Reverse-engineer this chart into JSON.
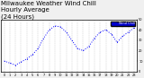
{
  "title": "Milwaukee Weather Wind Chill\nHourly Average\n(24 Hours)",
  "hours": [
    0,
    1,
    2,
    3,
    4,
    5,
    6,
    7,
    8,
    9,
    10,
    11,
    12,
    13,
    14,
    15,
    16,
    17,
    18,
    19,
    20,
    21,
    22,
    23
  ],
  "wind_chill": [
    10,
    8,
    6,
    9,
    12,
    16,
    22,
    32,
    40,
    44,
    43,
    38,
    30,
    22,
    20,
    24,
    32,
    38,
    40,
    36,
    28,
    34,
    38,
    42
  ],
  "ylim": [
    0,
    50
  ],
  "yticks": [
    0,
    10,
    20,
    30,
    40,
    50
  ],
  "line_color": "#0000ff",
  "background_color": "#f0f0f0",
  "plot_bg": "#ffffff",
  "grid_color": "#aaaaaa",
  "legend_color": "#0000cc",
  "title_fontsize": 5
}
